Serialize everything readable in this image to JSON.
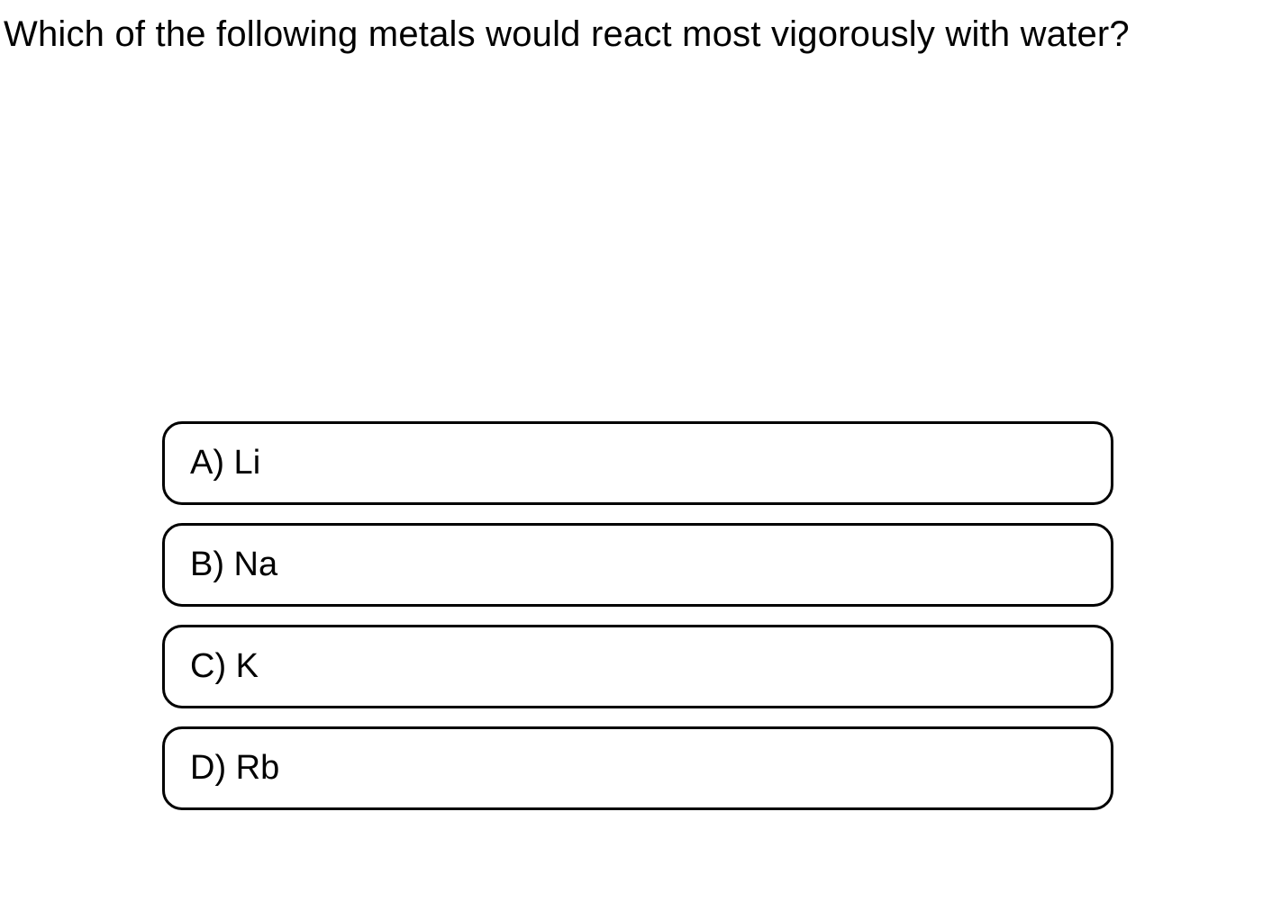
{
  "question": {
    "text": "Which of the following metals would react most vigorously with water?",
    "font_size": 40,
    "color": "#000000"
  },
  "options": [
    {
      "letter": "A",
      "value": "Li",
      "label": "A) Li"
    },
    {
      "letter": "B",
      "value": "Na",
      "label": "B) Na"
    },
    {
      "letter": "C",
      "value": "K",
      "label": "C) K"
    },
    {
      "letter": "D",
      "value": "Rb",
      "label": "D) Rb"
    }
  ],
  "styling": {
    "background_color": "#ffffff",
    "option_border_color": "#000000",
    "option_border_width": 3,
    "option_border_radius": 22,
    "option_font_size": 38,
    "option_text_color": "#000000",
    "option_spacing": 20,
    "option_width": 1056
  }
}
